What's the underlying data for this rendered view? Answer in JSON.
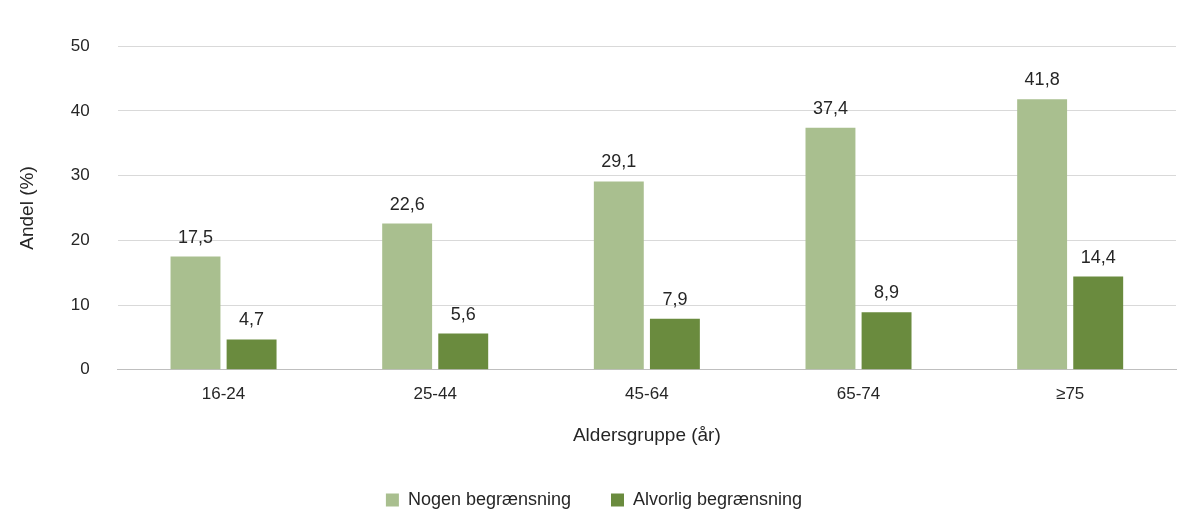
{
  "chart_data": {
    "type": "bar",
    "xlabel": "Aldersgruppe (år)",
    "ylabel": "Andel (%)",
    "categories": [
      "16-24",
      "25-44",
      "45-64",
      "65-74",
      "≥75"
    ],
    "series": [
      {
        "name": "Nogen begrænsning",
        "color": "#a9bf8f",
        "values": [
          17.5,
          22.6,
          29.1,
          37.4,
          41.8
        ],
        "value_labels": [
          "17,5",
          "22,6",
          "29,1",
          "37,4",
          "41,8"
        ]
      },
      {
        "name": "Alvorlig begrænsning",
        "color": "#6a8b3e",
        "values": [
          4.7,
          5.6,
          7.9,
          8.9,
          14.4
        ],
        "value_labels": [
          "4,7",
          "5,6",
          "7,9",
          "8,9",
          "14,4"
        ]
      }
    ],
    "ylim": [
      0,
      50
    ],
    "yticks": [
      0,
      10,
      20,
      30,
      40,
      50
    ],
    "grid": "y",
    "legend": "bottom"
  }
}
